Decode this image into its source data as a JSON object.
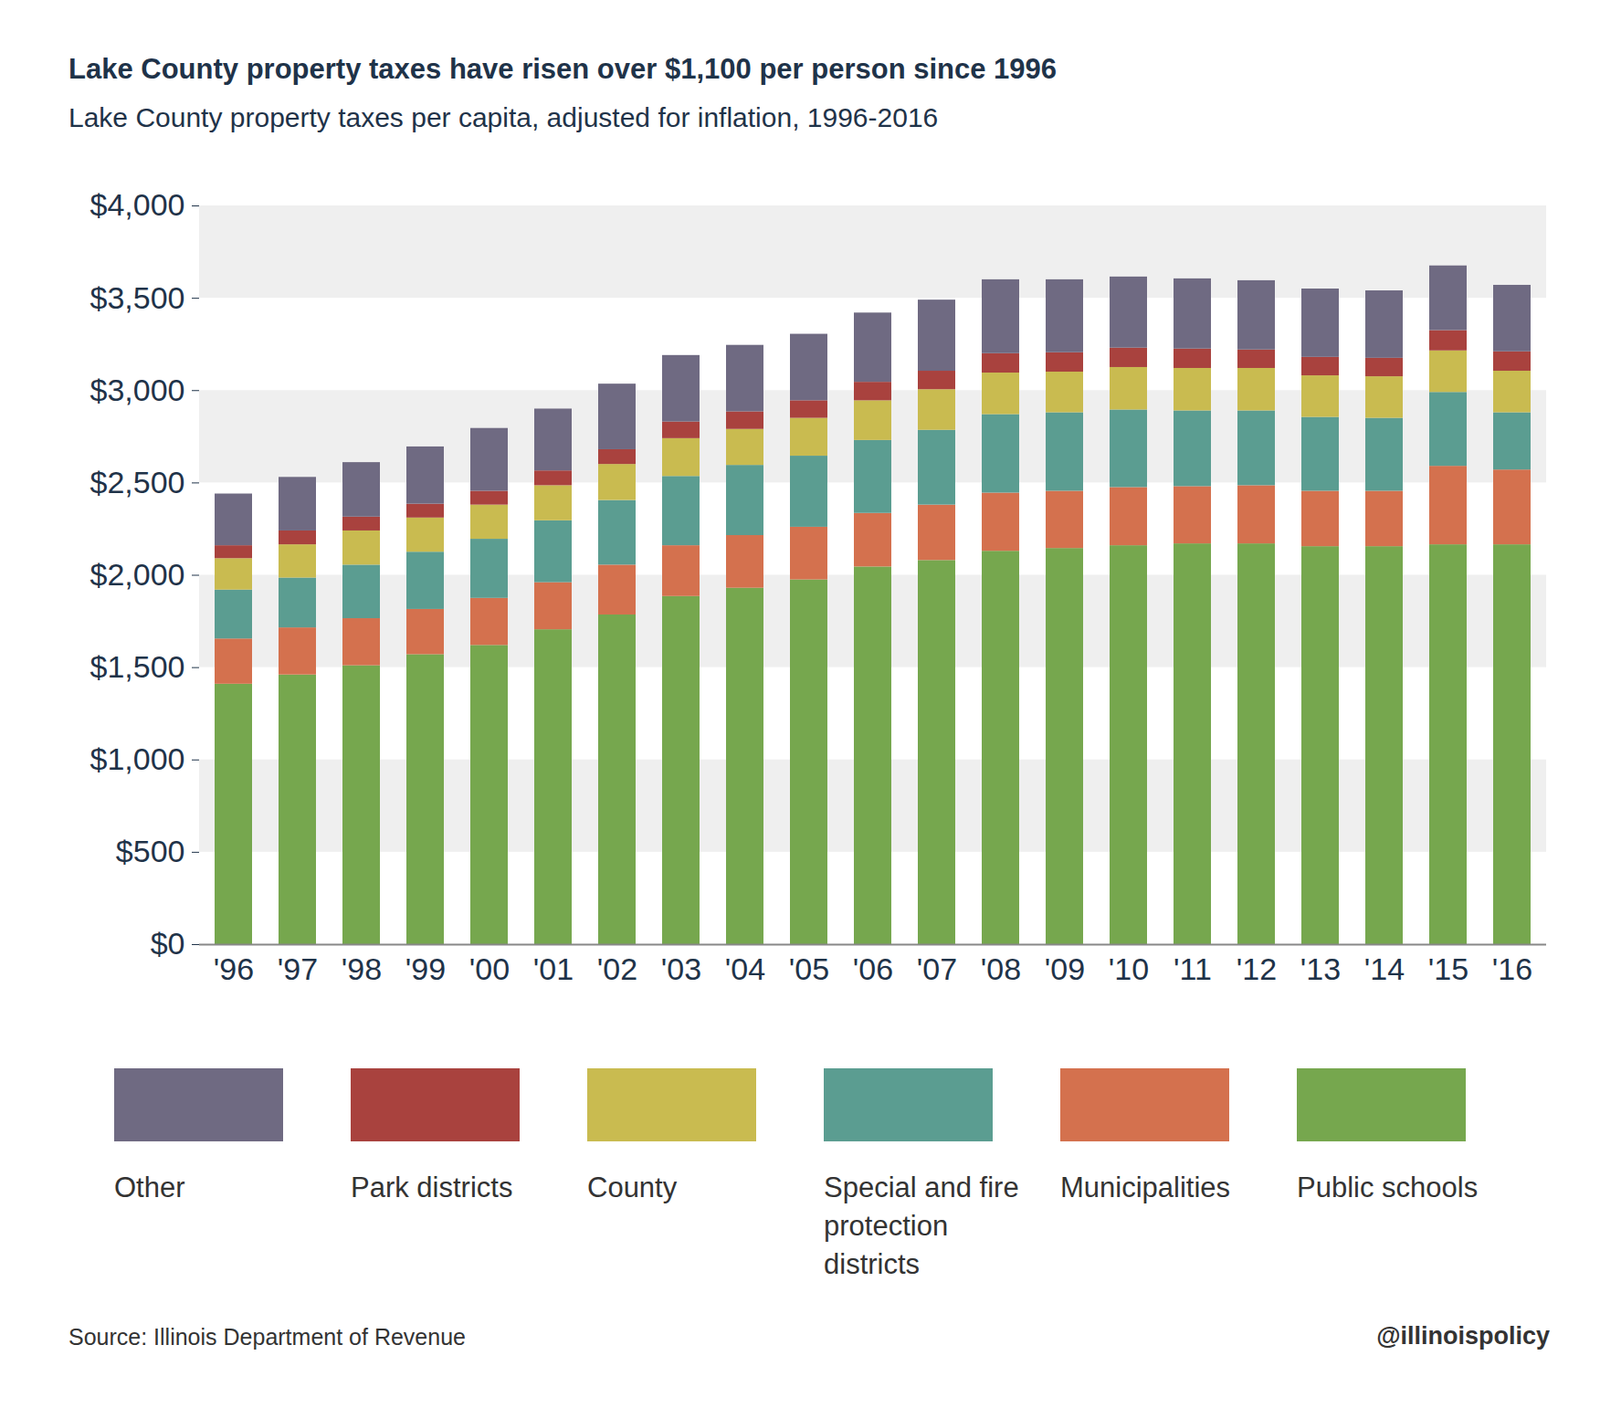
{
  "chart_data": {
    "type": "bar",
    "stacked": true,
    "title": "Lake County property taxes have risen over $1,100 per person since 1996",
    "subtitle": "Lake County property taxes per capita, adjusted for inflation, 1996-2016",
    "source": "Source: Illinois Department of Revenue",
    "credit": "@illinoispolicy",
    "categories": [
      "'96",
      "'97",
      "'98",
      "'99",
      "'00",
      "'01",
      "'02",
      "'03",
      "'04",
      "'05",
      "'06",
      "'07",
      "'08",
      "'09",
      "'10",
      "'11",
      "'12",
      "'13",
      "'14",
      "'15",
      "'16"
    ],
    "series": [
      {
        "name": "Public schools",
        "color": "#76a74e",
        "values": [
          1410,
          1460,
          1510,
          1570,
          1620,
          1705,
          1785,
          1885,
          1930,
          1975,
          2045,
          2080,
          2130,
          2145,
          2160,
          2170,
          2170,
          2155,
          2155,
          2165,
          2165
        ]
      },
      {
        "name": "Municipalities",
        "color": "#d4714e",
        "values": [
          245,
          255,
          255,
          245,
          255,
          255,
          270,
          275,
          285,
          285,
          290,
          300,
          315,
          310,
          315,
          310,
          315,
          300,
          300,
          425,
          405
        ]
      },
      {
        "name": "Special and fire protection districts",
        "color": "#5b9d91",
        "values": [
          265,
          270,
          290,
          310,
          320,
          335,
          350,
          375,
          380,
          385,
          395,
          405,
          425,
          425,
          420,
          410,
          405,
          400,
          395,
          400,
          310
        ]
      },
      {
        "name": "County",
        "color": "#c9bb50",
        "values": [
          170,
          180,
          185,
          185,
          185,
          190,
          195,
          205,
          195,
          205,
          215,
          220,
          225,
          220,
          230,
          230,
          230,
          225,
          225,
          225,
          225
        ]
      },
      {
        "name": "Park districts",
        "color": "#a9423e",
        "values": [
          70,
          75,
          75,
          75,
          75,
          80,
          80,
          90,
          95,
          95,
          100,
          100,
          105,
          105,
          105,
          105,
          100,
          100,
          100,
          110,
          105
        ]
      },
      {
        "name": "Other",
        "color": "#6f6a82",
        "values": [
          280,
          290,
          295,
          310,
          340,
          335,
          355,
          360,
          360,
          360,
          375,
          385,
          400,
          395,
          385,
          380,
          375,
          370,
          365,
          350,
          360
        ]
      }
    ],
    "ylim": [
      0,
      4000
    ],
    "yticks": [
      {
        "value": 0,
        "label": "$0"
      },
      {
        "value": 500,
        "label": "$500"
      },
      {
        "value": 1000,
        "label": "$1,000"
      },
      {
        "value": 1500,
        "label": "$1,500"
      },
      {
        "value": 2000,
        "label": "$2,000"
      },
      {
        "value": 2500,
        "label": "$2,500"
      },
      {
        "value": 3000,
        "label": "$3,000"
      },
      {
        "value": 3500,
        "label": "$3,500"
      },
      {
        "value": 4000,
        "label": "$4,000"
      }
    ],
    "grid": true,
    "legend": "bottom"
  }
}
